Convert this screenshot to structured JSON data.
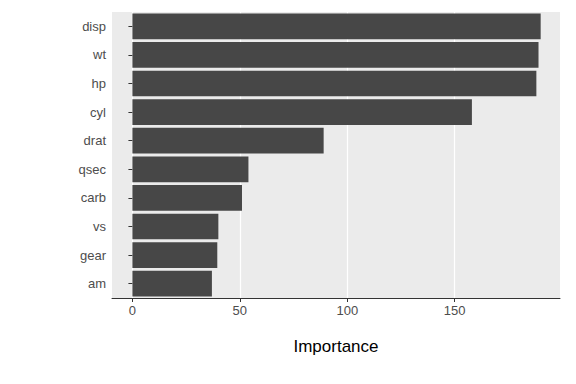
{
  "chart_data": {
    "type": "bar",
    "orientation": "horizontal",
    "categories": [
      "disp",
      "wt",
      "hp",
      "cyl",
      "drat",
      "qsec",
      "carb",
      "vs",
      "gear",
      "am"
    ],
    "values": [
      190,
      189,
      188,
      158,
      89,
      54,
      51,
      40,
      39.5,
      37
    ],
    "color": "#474747",
    "x_label": "Importance",
    "xlim": [
      -9.5,
      199
    ],
    "xticks": [
      0,
      50,
      100,
      150
    ],
    "grid": true
  }
}
